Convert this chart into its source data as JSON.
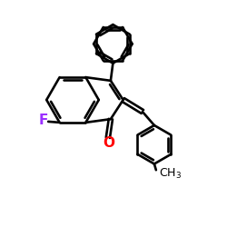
{
  "bg_color": "#ffffff",
  "F_color": "#9b30ff",
  "O_color": "#ff0000",
  "line_color": "#000000",
  "lw": 1.9,
  "figsize": [
    2.5,
    2.5
  ],
  "dpi": 100,
  "xlim": [
    0,
    10
  ],
  "ylim": [
    0,
    10
  ]
}
